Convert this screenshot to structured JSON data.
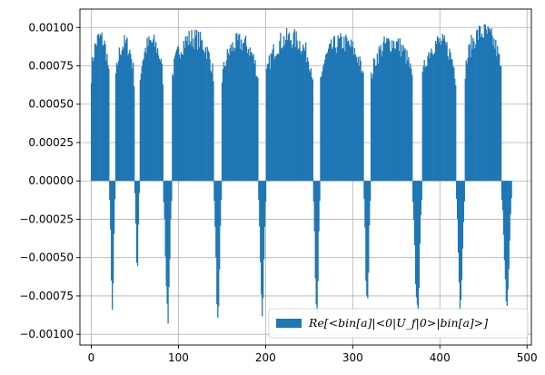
{
  "chart_data": {
    "type": "bar",
    "title": "",
    "xlabel": "",
    "ylabel": "",
    "xlim": [
      -13,
      505
    ],
    "ylim": [
      -0.00107,
      0.00112
    ],
    "grid": true,
    "legend": {
      "placement": "lower-right",
      "entries": [
        "Re[<bin[a]|<0|U_f|0>|bin[a]>]"
      ]
    },
    "legend_label": "Re[<bin[a]|<0|U_f|0>|bin[a]>]",
    "x_ticks": [
      0,
      100,
      200,
      300,
      400,
      500
    ],
    "x_tick_labels": [
      "0",
      "100",
      "200",
      "300",
      "400",
      "500"
    ],
    "y_ticks": [
      -0.001,
      -0.00075,
      -0.0005,
      -0.00025,
      0,
      0.00025,
      0.0005,
      0.00075,
      0.001
    ],
    "y_tick_labels": [
      "−0.00100",
      "−0.00075",
      "−0.00050",
      "−0.00025",
      "0.00000",
      "0.00025",
      "0.00050",
      "0.00075",
      "0.00100"
    ],
    "series": [
      {
        "color": "#1f77b4",
        "segments": [
          {
            "sign": "positive",
            "x_range": [
              0,
              20
            ],
            "peak": 0.001
          },
          {
            "sign": "negative",
            "x_range": [
              21,
              27
            ],
            "peak": -0.00085
          },
          {
            "sign": "positive",
            "x_range": [
              28,
              49
            ],
            "peak": 0.00096
          },
          {
            "sign": "negative",
            "x_range": [
              50,
              55
            ],
            "peak": -0.0006
          },
          {
            "sign": "positive",
            "x_range": [
              56,
              82
            ],
            "peak": 0.00097
          },
          {
            "sign": "negative",
            "x_range": [
              83,
              92
            ],
            "peak": -0.00095
          },
          {
            "sign": "positive",
            "x_range": [
              93,
              140
            ],
            "peak": 0.001
          },
          {
            "sign": "negative",
            "x_range": [
              141,
              149
            ],
            "peak": -0.00091
          },
          {
            "sign": "positive",
            "x_range": [
              150,
              191
            ],
            "peak": 0.00097
          },
          {
            "sign": "negative",
            "x_range": [
              192,
              200
            ],
            "peak": -0.00093
          },
          {
            "sign": "positive",
            "x_range": [
              201,
              254
            ],
            "peak": 0.001
          },
          {
            "sign": "negative",
            "x_range": [
              255,
              262
            ],
            "peak": -0.00091
          },
          {
            "sign": "positive",
            "x_range": [
              263,
              312
            ],
            "peak": 0.00097
          },
          {
            "sign": "negative",
            "x_range": [
              313,
              320
            ],
            "peak": -0.00091
          },
          {
            "sign": "positive",
            "x_range": [
              321,
              368
            ],
            "peak": 0.00097
          },
          {
            "sign": "negative",
            "x_range": [
              369,
              379
            ],
            "peak": -0.00093
          },
          {
            "sign": "positive",
            "x_range": [
              380,
              418
            ],
            "peak": 0.00097
          },
          {
            "sign": "negative",
            "x_range": [
              419,
              428
            ],
            "peak": -0.00091
          },
          {
            "sign": "positive",
            "x_range": [
              429,
              470
            ],
            "peak": 0.00104
          },
          {
            "sign": "negative",
            "x_range": [
              471,
              482
            ],
            "peak": -0.00085
          }
        ]
      }
    ]
  }
}
